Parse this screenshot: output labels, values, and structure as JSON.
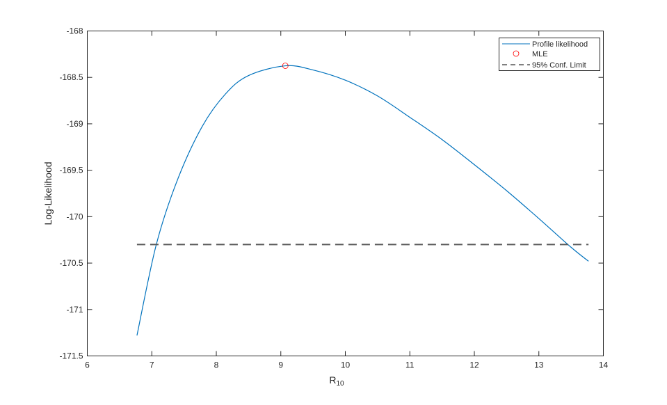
{
  "chart_data": {
    "type": "line",
    "xlabel": "R",
    "xlabel_subscript": "10",
    "ylabel": "Log-Likelihood",
    "xlim": [
      6,
      14
    ],
    "ylim": [
      -171.5,
      -168
    ],
    "xticks": [
      "6",
      "7",
      "8",
      "9",
      "10",
      "11",
      "12",
      "13",
      "14"
    ],
    "yticks": [
      "-168",
      "-168.5",
      "-169",
      "-169.5",
      "-170",
      "-170.5",
      "-171",
      "-171.5"
    ],
    "grid": false,
    "legend_position": "top-right",
    "series": [
      {
        "name": "Profile likelihood",
        "style": "line",
        "color": "#0072BD",
        "x": [
          6.77,
          7.07,
          7.4,
          7.78,
          8.14,
          8.5,
          9.07,
          9.5,
          10,
          10.5,
          11,
          11.5,
          12,
          12.5,
          13,
          13.5,
          13.77
        ],
        "y": [
          -171.28,
          -170.3,
          -169.6,
          -169.03,
          -168.68,
          -168.48,
          -168.375,
          -168.42,
          -168.53,
          -168.7,
          -168.93,
          -169.17,
          -169.44,
          -169.72,
          -170.02,
          -170.33,
          -170.48
        ]
      },
      {
        "name": "MLE",
        "style": "marker-circle",
        "color": "#FF0000",
        "x": [
          9.07
        ],
        "y": [
          -168.375
        ]
      },
      {
        "name": "95% Conf. Limit",
        "style": "dashed",
        "color": "#000000",
        "x": [
          6.77,
          13.77
        ],
        "y": [
          -170.3,
          -170.3
        ]
      }
    ]
  }
}
